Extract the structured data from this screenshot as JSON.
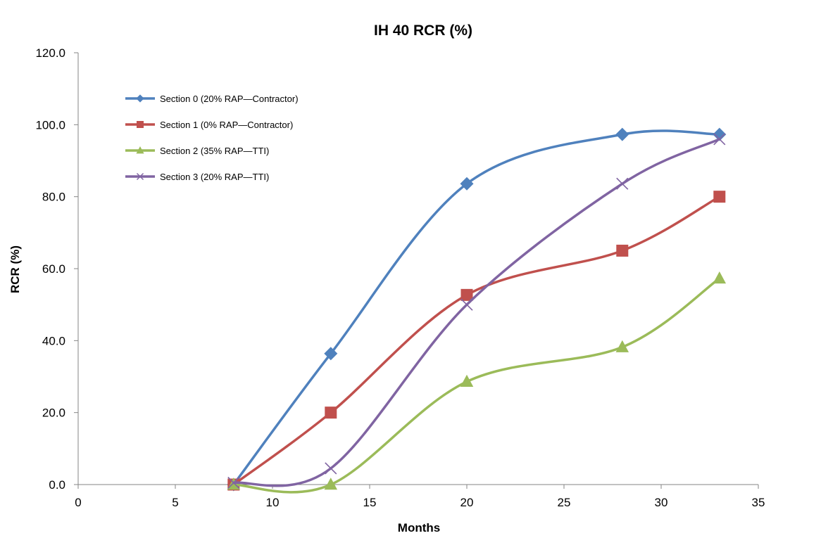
{
  "chart_data": {
    "type": "line",
    "title": "IH 40 RCR (%)",
    "xlabel": "Months",
    "ylabel": "RCR (%)",
    "xlim": [
      0,
      35
    ],
    "ylim": [
      0,
      120
    ],
    "x_ticks": [
      0,
      5,
      10,
      15,
      20,
      25,
      30,
      35
    ],
    "y_ticks": [
      0,
      20,
      40,
      60,
      80,
      100,
      120
    ],
    "y_tick_labels": [
      "0.0",
      "20.0",
      "40.0",
      "60.0",
      "80.0",
      "100.0",
      "120.0"
    ],
    "grid": false,
    "smoothed": true,
    "legend_position": "top-left",
    "series": [
      {
        "name": "Section 0 (20% RAP—Contractor)",
        "color": "#4F81BD",
        "marker": "diamond",
        "x": [
          8,
          13,
          20,
          28,
          33
        ],
        "y": [
          0,
          36.4,
          83.6,
          97.3,
          97.3
        ]
      },
      {
        "name": "Section 1 (0% RAP—Contractor)",
        "color": "#C0504D",
        "marker": "square",
        "x": [
          8,
          13,
          20,
          28,
          33
        ],
        "y": [
          0,
          20.0,
          52.7,
          65.0,
          80.0
        ]
      },
      {
        "name": "Section 2 (35% RAP—TTI)",
        "color": "#9BBB59",
        "marker": "triangle",
        "x": [
          8,
          13,
          20,
          28,
          33
        ],
        "y": [
          0,
          0,
          28.6,
          38.2,
          57.3
        ]
      },
      {
        "name": "Section 3 (20% RAP—TTI)",
        "color": "#8064A2",
        "marker": "x",
        "x": [
          8,
          13,
          20,
          28,
          33
        ],
        "y": [
          0.5,
          4.5,
          50.0,
          83.6,
          96.0
        ]
      }
    ]
  }
}
